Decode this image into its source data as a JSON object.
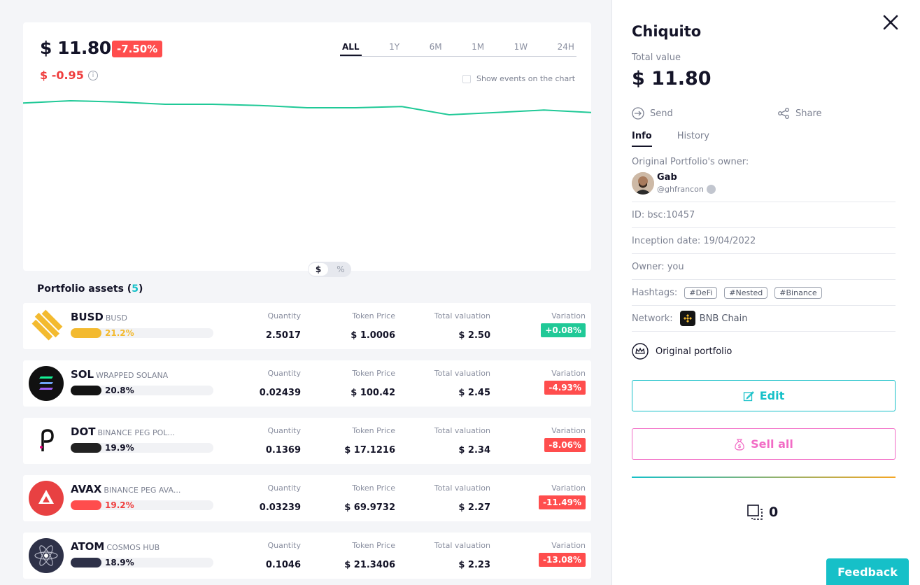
{
  "summary": {
    "value": "$ 11.80",
    "change_pct": "-7.50%",
    "change_abs": "$ -0.95",
    "info_icon": "info-icon"
  },
  "ranges": [
    "ALL",
    "1Y",
    "6M",
    "1M",
    "1W",
    "24H"
  ],
  "active_range": "ALL",
  "events_label": "Show events on the chart",
  "unit_toggle": {
    "dollar": "$",
    "percent": "%"
  },
  "chart_data": {
    "type": "line",
    "series": [
      {
        "values": [
          12.6,
          12.8,
          12.7,
          12.5,
          12.5,
          12.4,
          12.2,
          12.2,
          12.3,
          11.6,
          11.8,
          12.0,
          11.8
        ]
      }
    ],
    "color": "#20c997",
    "grid": false
  },
  "assets": {
    "title": "Portfolio assets (",
    "count": "5",
    "title_end": ")",
    "labels": {
      "quantity": "Quantity",
      "token_price": "Token Price",
      "total_valuation": "Total valuation",
      "variation": "Variation"
    },
    "rows": [
      {
        "symbol": "BUSD",
        "name": "BUSD",
        "weight": "21.2%",
        "quantity": "2.5017",
        "price": "$ 1.0006",
        "valuation": "$ 2.50",
        "variation": "+0.08%",
        "bar_color": "#f3ba2f",
        "weight_color": "#f3ba2f",
        "var_color": "#20c997"
      },
      {
        "symbol": "SOL",
        "name": "WRAPPED SOLANA",
        "weight": "20.8%",
        "quantity": "0.02439",
        "price": "$ 100.42",
        "valuation": "$ 2.45",
        "variation": "-4.93%",
        "bar_color": "#141414",
        "weight_color": "#141428",
        "var_color": "#ff4d4d"
      },
      {
        "symbol": "DOT",
        "name": "BINANCE PEG POL...",
        "weight": "19.9%",
        "quantity": "0.1369",
        "price": "$ 17.1216",
        "valuation": "$ 2.34",
        "variation": "-8.06%",
        "bar_color": "#222222",
        "weight_color": "#141428",
        "var_color": "#ff4d4d"
      },
      {
        "symbol": "AVAX",
        "name": "BINANCE PEG AVA...",
        "weight": "19.2%",
        "quantity": "0.03239",
        "price": "$ 69.9732",
        "valuation": "$ 2.27",
        "variation": "-11.49%",
        "bar_color": "#ff4d4d",
        "weight_color": "#ef3e3e",
        "var_color": "#ff4d4d"
      },
      {
        "symbol": "ATOM",
        "name": "COSMOS HUB",
        "weight": "18.9%",
        "quantity": "0.1046",
        "price": "$ 21.3406",
        "valuation": "$ 2.23",
        "variation": "-13.08%",
        "bar_color": "#2e3148",
        "weight_color": "#141428",
        "var_color": "#ff4d4d"
      }
    ]
  },
  "panel": {
    "title": "Chiquito",
    "total_label": "Total value",
    "total": "$ 11.80",
    "send": "Send",
    "share": "Share",
    "tabs": [
      "Info",
      "History"
    ],
    "owner_label": "Original Portfolio's owner:",
    "owner_name": "Gab",
    "owner_handle": "@ghfrancon",
    "id_row": "ID: bsc:10457",
    "inception_row": "Inception date: 19/04/2022",
    "owner_row": "Owner:  you",
    "hashtags_label": "Hashtags:",
    "hashtags": [
      "#DeFi",
      "#Nested",
      "#Binance"
    ],
    "network_label": "Network:",
    "network": "BNB Chain",
    "original": "Original portfolio",
    "edit": "Edit",
    "sell_all": "Sell all",
    "copies": "0"
  },
  "feedback": "Feedback",
  "colors": {
    "accent": "#16c0c8",
    "pink": "#f26bc5",
    "red": "#ff4d4d",
    "green": "#20c997"
  }
}
